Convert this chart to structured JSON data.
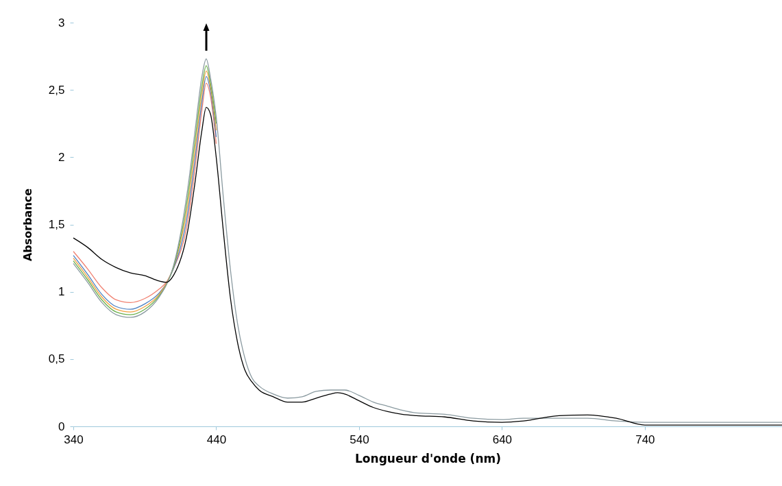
{
  "chart_data": {
    "type": "line",
    "xlabel": "Longueur d'onde (nm)",
    "ylabel": "Absorbance",
    "x": [
      340,
      350,
      360,
      370,
      380,
      390,
      400,
      405,
      410,
      420,
      425,
      430,
      433,
      436,
      440,
      445,
      450,
      455,
      460,
      465,
      470,
      480,
      490,
      500,
      510,
      520,
      525,
      530,
      540,
      550,
      560,
      570,
      580,
      600,
      620,
      640,
      655,
      680,
      700,
      720,
      740,
      780,
      836
    ],
    "series": [
      {
        "color": "#f08070",
        "values": [
          1.3,
          1.17,
          1.03,
          0.94,
          0.92,
          0.95,
          1.02,
          1.07,
          1.17,
          1.52,
          1.9,
          2.35,
          2.55,
          2.45,
          2.1,
          null,
          null,
          null,
          null,
          null,
          null,
          null,
          null,
          null,
          null,
          null,
          null,
          null,
          null,
          null,
          null,
          null,
          null,
          null,
          null,
          null,
          null,
          null,
          null,
          null,
          null,
          null,
          null
        ]
      },
      {
        "color": "#4a7fc1",
        "values": [
          1.27,
          1.13,
          0.98,
          0.89,
          0.87,
          0.91,
          0.99,
          1.06,
          1.17,
          1.58,
          1.97,
          2.41,
          2.6,
          2.49,
          2.15,
          null,
          null,
          null,
          null,
          null,
          null,
          null,
          null,
          null,
          null,
          null,
          null,
          null,
          null,
          null,
          null,
          null,
          null,
          null,
          null,
          null,
          null,
          null,
          null,
          null,
          null,
          null,
          null
        ]
      },
      {
        "color": "#f0a040",
        "values": [
          1.25,
          1.11,
          0.96,
          0.87,
          0.85,
          0.89,
          0.98,
          1.06,
          1.18,
          1.64,
          2.04,
          2.47,
          2.64,
          2.52,
          2.2,
          null,
          null,
          null,
          null,
          null,
          null,
          null,
          null,
          null,
          null,
          null,
          null,
          null,
          null,
          null,
          null,
          null,
          null,
          null,
          null,
          null,
          null,
          null,
          null,
          null,
          null,
          null,
          null
        ]
      },
      {
        "color": "#6ab04c",
        "values": [
          1.23,
          1.09,
          0.94,
          0.85,
          0.83,
          0.87,
          0.97,
          1.05,
          1.18,
          1.7,
          2.11,
          2.53,
          2.68,
          2.55,
          2.25,
          null,
          null,
          null,
          null,
          null,
          null,
          null,
          null,
          null,
          null,
          null,
          null,
          null,
          null,
          null,
          null,
          null,
          null,
          null,
          null,
          null,
          null,
          null,
          null,
          null,
          null,
          null,
          null
        ]
      },
      {
        "color": "#8a9aa0",
        "values": [
          1.21,
          1.07,
          0.92,
          0.83,
          0.81,
          0.85,
          0.96,
          1.05,
          1.19,
          1.76,
          2.18,
          2.6,
          2.73,
          2.59,
          2.3,
          1.7,
          1.16,
          0.76,
          0.51,
          0.36,
          0.3,
          0.24,
          0.21,
          0.22,
          0.26,
          0.27,
          0.27,
          0.27,
          0.23,
          0.18,
          0.15,
          0.12,
          0.1,
          0.09,
          0.06,
          0.05,
          0.06,
          0.06,
          0.06,
          0.04,
          0.03,
          0.03,
          0.03
        ]
      },
      {
        "color": "#000000",
        "values": [
          1.4,
          1.33,
          1.24,
          1.18,
          1.14,
          1.12,
          1.08,
          1.07,
          1.12,
          1.45,
          1.8,
          2.2,
          2.37,
          2.32,
          2.0,
          1.45,
          0.95,
          0.62,
          0.42,
          0.33,
          0.27,
          0.22,
          0.18,
          0.18,
          0.21,
          0.24,
          0.25,
          0.24,
          0.19,
          0.14,
          0.11,
          0.09,
          0.08,
          0.07,
          0.04,
          0.03,
          0.04,
          0.08,
          0.085,
          0.06,
          0.01,
          0.01,
          0.01
        ]
      }
    ],
    "xlim": [
      340,
      836
    ],
    "xticks": [
      340,
      440,
      540,
      640,
      740
    ],
    "ylim": [
      0,
      3
    ],
    "yticks": [
      0,
      {
        "value": 0.5,
        "label": "0,5"
      },
      1,
      {
        "value": 1.5,
        "label": "1,5"
      },
      2,
      {
        "value": 2.5,
        "label": "2,5"
      },
      3
    ],
    "grid": false,
    "legend": false,
    "marker": "none",
    "line_style": "solid"
  }
}
